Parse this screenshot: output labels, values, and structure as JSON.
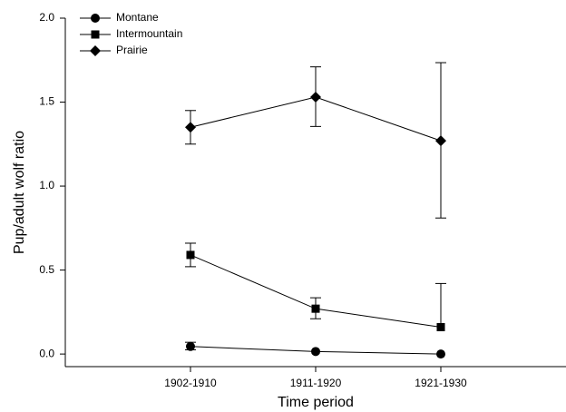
{
  "chart_data": {
    "type": "line",
    "x_label": "Time period",
    "y_label": "Pup/adult wolf ratio",
    "categories": [
      "1902-1910",
      "1911-1920",
      "1921-1930"
    ],
    "ylim": [
      -0.075,
      2.0
    ],
    "yticks": [
      {
        "value": 0,
        "label": "0.0"
      },
      {
        "value": 0.5,
        "label": "0.5"
      },
      {
        "value": 1.0,
        "label": "1.0"
      },
      {
        "value": 1.5,
        "label": "1.5"
      },
      {
        "value": 2.0,
        "label": "2.0"
      }
    ],
    "legend": "top-left",
    "series": [
      {
        "name": "Montane",
        "marker": "circle",
        "color": "#000000",
        "values": [
          0.045,
          0.015,
          0.0
        ],
        "error_low": [
          0.025,
          null,
          null
        ],
        "error_high": [
          0.07,
          null,
          null
        ]
      },
      {
        "name": "Intermountain",
        "marker": "square",
        "color": "#000000",
        "values": [
          0.59,
          0.27,
          0.16
        ],
        "error_low": [
          0.52,
          0.21,
          null
        ],
        "error_high": [
          0.66,
          0.335,
          0.42
        ]
      },
      {
        "name": "Prairie",
        "marker": "diamond",
        "color": "#000000",
        "values": [
          1.35,
          1.53,
          1.27
        ],
        "error_low": [
          1.25,
          1.355,
          0.81
        ],
        "error_high": [
          1.45,
          1.71,
          1.735
        ]
      }
    ]
  }
}
